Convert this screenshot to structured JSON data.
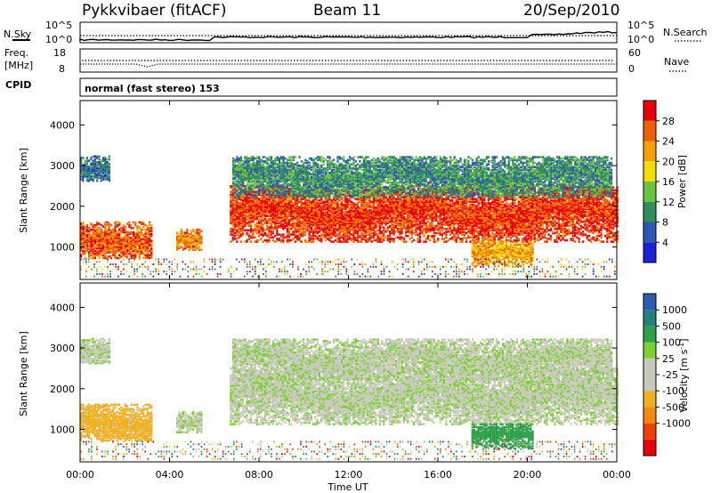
{
  "header": {
    "station": "Pykkvibaer (fitACF)",
    "beam": "Beam 11",
    "date": "20/Sep/2010"
  },
  "noise_panel": {
    "left_label": "N.Sky",
    "right_label": "N.Search",
    "ticks": [
      "10^5",
      "10^0"
    ]
  },
  "freq_panel": {
    "left_label_1": "Freq.",
    "left_label_2": "[MHz]",
    "right_label": "Nave",
    "left_ticks": [
      "18",
      "8"
    ],
    "right_ticks": [
      "60",
      "0"
    ]
  },
  "cpid": {
    "label": "CPID",
    "value": "normal (fast stereo) 153"
  },
  "x_axis": {
    "label": "Time UT",
    "ticks": [
      "00:00",
      "04:00",
      "08:00",
      "12:00",
      "16:00",
      "20:00",
      "00:00"
    ],
    "range_hours": [
      0,
      24
    ]
  },
  "colors": {
    "power": [
      "#1f1fd8",
      "#2e55b8",
      "#2f8f5a",
      "#6cc43c",
      "#f0e000",
      "#f5a000",
      "#f06000",
      "#e8000a"
    ],
    "velocity": [
      "#e8000a",
      "#f04000",
      "#f08a10",
      "#f0b020",
      "#c8c8bd",
      "#c8c8bd",
      "#7cd030",
      "#2fa04a",
      "#247f7f",
      "#2a5cb0"
    ]
  },
  "chart_data": [
    {
      "type": "heatmap",
      "panel": "power",
      "ylabel": "Slant Range [km]",
      "ylim": [
        200,
        4600
      ],
      "yticks": [
        "4000",
        "3000",
        "2000",
        "1000"
      ],
      "xlim_hours": [
        0,
        24
      ],
      "colorbar": {
        "label": "Power [dB]",
        "ticks": [
          "28",
          "24",
          "20",
          "16",
          "12",
          "8",
          "4"
        ],
        "range": [
          0,
          32
        ]
      },
      "features": [
        {
          "name": "band-A",
          "t_start": 0.0,
          "t_end": 3.2,
          "range_km": [
            700,
            1600
          ],
          "power_db": 26
        },
        {
          "name": "band-B",
          "t_start": 4.3,
          "t_end": 5.4,
          "range_km": [
            900,
            1400
          ],
          "power_db": 24
        },
        {
          "name": "band-C",
          "t_start": 6.7,
          "t_end": 24.0,
          "range_km": [
            1100,
            2500
          ],
          "power_db": 28
        },
        {
          "name": "band-D",
          "t_start": 6.8,
          "t_end": 23.8,
          "range_km": [
            2200,
            3200
          ],
          "power_db": 10
        },
        {
          "name": "band-E",
          "t_start": 17.5,
          "t_end": 20.2,
          "range_km": [
            500,
            1100
          ],
          "power_db": 22
        },
        {
          "name": "band-F",
          "t_start": 0.0,
          "t_end": 1.3,
          "range_km": [
            2600,
            3200
          ],
          "power_db": 8
        }
      ]
    },
    {
      "type": "heatmap",
      "panel": "velocity",
      "ylabel": "Slant Range [km]",
      "ylim": [
        200,
        4600
      ],
      "yticks": [
        "4000",
        "3000",
        "2000",
        "1000"
      ],
      "xlim_hours": [
        0,
        24
      ],
      "colorbar": {
        "label": "Velocity [m s^-1]",
        "ticks": [
          "1000",
          "500",
          "100",
          "25",
          "-25",
          "-100",
          "-500",
          "-1000"
        ],
        "range": [
          -1000,
          1000
        ]
      },
      "features": [
        {
          "name": "band-A",
          "t_start": 0.0,
          "t_end": 3.2,
          "range_km": [
            700,
            1600
          ],
          "velocity": -150
        },
        {
          "name": "band-B",
          "t_start": 4.3,
          "t_end": 5.4,
          "range_km": [
            900,
            1400
          ],
          "velocity": 0
        },
        {
          "name": "band-C",
          "t_start": 6.7,
          "t_end": 24.0,
          "range_km": [
            1100,
            2500
          ],
          "velocity": 0
        },
        {
          "name": "band-D",
          "t_start": 6.8,
          "t_end": 23.8,
          "range_km": [
            2200,
            3200
          ],
          "velocity": 0
        },
        {
          "name": "band-E",
          "t_start": 17.5,
          "t_end": 20.2,
          "range_km": [
            500,
            1100
          ],
          "velocity": 200
        },
        {
          "name": "band-F",
          "t_start": 0.0,
          "t_end": 1.3,
          "range_km": [
            2600,
            3200
          ],
          "velocity": 0
        }
      ]
    }
  ]
}
